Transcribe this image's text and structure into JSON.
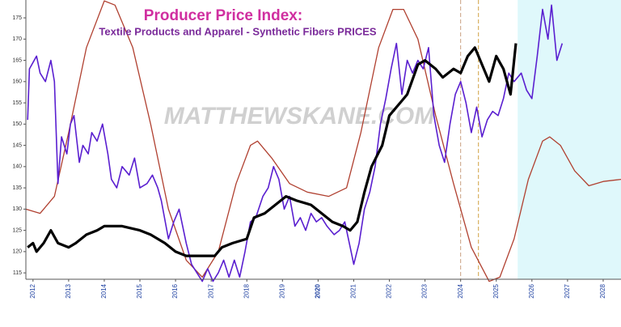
{
  "chart_data": {
    "type": "line",
    "title": "Producer Price Index:",
    "subtitle": "Textile Products and Apparel - Synthetic Fibers PRICES",
    "watermark": "MATTHEWSKANE.COM",
    "xlim": [
      2011.8,
      2028.5
    ],
    "xticks": [
      2012,
      2013,
      2014,
      2015,
      2016,
      2017,
      2018,
      2019,
      2020,
      2021,
      2022,
      2023,
      2024,
      2025,
      2026,
      2027,
      2028
    ],
    "highlight_xtick": 2020,
    "ylim": [
      113.5,
      179.2
    ],
    "yticks": [
      115,
      120,
      125,
      130,
      135,
      140,
      145,
      150,
      155,
      160,
      165,
      170,
      175
    ],
    "shaded_region": {
      "x": [
        2025.6,
        2028.5
      ],
      "color": "#dff8fb"
    },
    "vlines": [
      {
        "x": 2024.0,
        "color": "#c8a080"
      },
      {
        "x": 2024.5,
        "color": "#d0a040"
      }
    ],
    "series": [
      {
        "color": "#b04030",
        "width": 1.3,
        "x": [
          2011.8,
          2012.2,
          2012.6,
          2013.0,
          2013.5,
          2014.0,
          2014.3,
          2014.8,
          2015.3,
          2015.8,
          2016.3,
          2016.75,
          2017.2,
          2017.7,
          2018.1,
          2018.3,
          2018.7,
          2019.2,
          2019.7,
          2020.3,
          2020.8,
          2021.2,
          2021.7,
          2022.1,
          2022.4,
          2022.8,
          2023.3,
          2023.8,
          2024.3,
          2024.8,
          2025.1,
          2025.5,
          2025.9,
          2026.3,
          2026.5,
          2026.8,
          2027.2,
          2027.6,
          2028.0,
          2028.5
        ],
        "values": [
          130,
          129,
          133,
          148,
          168,
          179,
          178,
          168,
          150,
          130,
          118,
          114,
          120,
          136,
          145,
          146,
          142,
          136,
          134,
          133,
          135,
          148,
          168,
          177,
          177,
          170,
          152,
          136,
          121,
          113,
          114,
          123,
          137,
          146,
          147,
          145,
          139,
          135.5,
          136.5,
          137
        ]
      },
      {
        "color": "#5a1fd0",
        "width": 1.6,
        "x": [
          2011.85,
          2011.9,
          2012.1,
          2012.2,
          2012.35,
          2012.5,
          2012.6,
          2012.7,
          2012.8,
          2012.95,
          2013.05,
          2013.15,
          2013.3,
          2013.4,
          2013.55,
          2013.65,
          2013.8,
          2013.95,
          2014.1,
          2014.2,
          2014.35,
          2014.5,
          2014.7,
          2014.85,
          2015.0,
          2015.2,
          2015.35,
          2015.5,
          2015.6,
          2015.8,
          2015.95,
          2016.1,
          2016.3,
          2016.45,
          2016.6,
          2016.75,
          2016.9,
          2017.05,
          2017.2,
          2017.35,
          2017.5,
          2017.65,
          2017.8,
          2017.95,
          2018.1,
          2018.25,
          2018.45,
          2018.6,
          2018.75,
          2018.9,
          2019.05,
          2019.2,
          2019.35,
          2019.5,
          2019.65,
          2019.8,
          2019.95,
          2020.1,
          2020.25,
          2020.45,
          2020.6,
          2020.75,
          2020.9,
          2021.0,
          2021.15,
          2021.3,
          2021.45,
          2021.6,
          2021.75,
          2021.9,
          2022.05,
          2022.2,
          2022.35,
          2022.5,
          2022.65,
          2022.8,
          2022.95,
          2023.1,
          2023.25,
          2023.4,
          2023.55,
          2023.7,
          2023.85,
          2024.0,
          2024.15,
          2024.3,
          2024.45,
          2024.6,
          2024.75,
          2024.9,
          2025.05,
          2025.2,
          2025.35,
          2025.5,
          2025.7,
          2025.85,
          2026.0,
          2026.15,
          2026.3,
          2026.45,
          2026.55,
          2026.7,
          2026.85
        ],
        "values": [
          151,
          163,
          166,
          162,
          160,
          165,
          160,
          136,
          147,
          143,
          150,
          152,
          141,
          145,
          143,
          148,
          146,
          150,
          143,
          137,
          135,
          140,
          138,
          142,
          135,
          136,
          138,
          135,
          132,
          123,
          127,
          130,
          122,
          117,
          115,
          113,
          116,
          113,
          115,
          118,
          114,
          118,
          114,
          120,
          127,
          128,
          133,
          135,
          140,
          137,
          130,
          133,
          126,
          128,
          125,
          129,
          127,
          128,
          126,
          124,
          125,
          127,
          121,
          117,
          122,
          130,
          134,
          140,
          150,
          156,
          163,
          169,
          157,
          165,
          162,
          165,
          163,
          168,
          152,
          145,
          141,
          150,
          157,
          160,
          155,
          148,
          154,
          147,
          151,
          153,
          152,
          156,
          162,
          160,
          162,
          158,
          156,
          166,
          177,
          170,
          178,
          165,
          169
        ]
      },
      {
        "color": "#000000",
        "width": 3.2,
        "x": [
          2011.85,
          2012.0,
          2012.1,
          2012.3,
          2012.5,
          2012.7,
          2013.0,
          2013.2,
          2013.5,
          2013.8,
          2014.0,
          2014.5,
          2015.0,
          2015.3,
          2015.7,
          2016.0,
          2016.3,
          2016.8,
          2017.1,
          2017.3,
          2017.6,
          2018.0,
          2018.2,
          2018.5,
          2018.8,
          2019.1,
          2019.4,
          2019.8,
          2020.1,
          2020.4,
          2020.7,
          2020.9,
          2021.1,
          2021.3,
          2021.5,
          2021.8,
          2022.0,
          2022.3,
          2022.5,
          2022.8,
          2023.0,
          2023.3,
          2023.5,
          2023.8,
          2024.0,
          2024.2,
          2024.4,
          2024.6,
          2024.8,
          2025.0,
          2025.2,
          2025.4,
          2025.5,
          2025.55
        ],
        "values": [
          121,
          122,
          120,
          122,
          125,
          122,
          121,
          122,
          124,
          125,
          126,
          126,
          125,
          124,
          122,
          120,
          119,
          119,
          119,
          121,
          122,
          123,
          128,
          129,
          131,
          133,
          132,
          131,
          129,
          127,
          126,
          125,
          127,
          134,
          140,
          145,
          152,
          155,
          157,
          164,
          165,
          163,
          161,
          163,
          162,
          166,
          168,
          164,
          160,
          166,
          163,
          157,
          165,
          169
        ]
      }
    ]
  }
}
